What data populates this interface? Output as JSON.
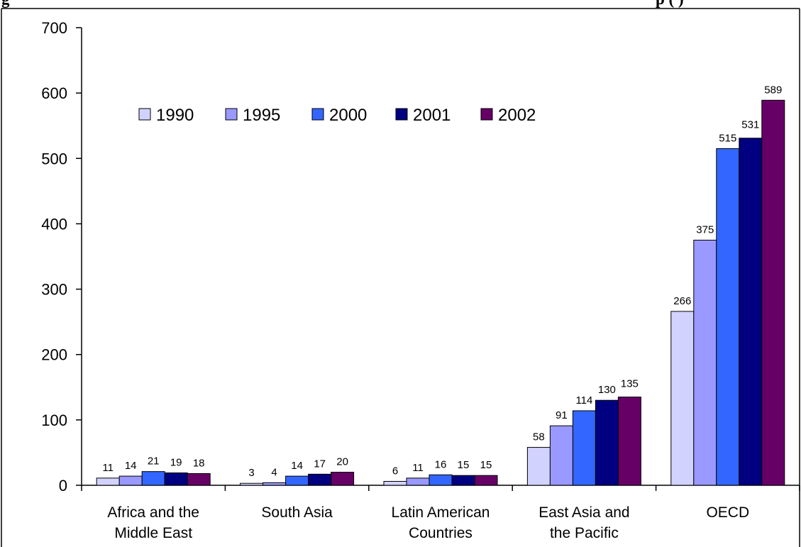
{
  "page": {
    "title_fragment_left": "g",
    "title_fragment_right": "p    (             )"
  },
  "chart_data": {
    "type": "bar",
    "title": "",
    "xlabel": "",
    "ylabel": "",
    "ylim": [
      0,
      700
    ],
    "yticks": [
      0,
      100,
      200,
      300,
      400,
      500,
      600,
      700
    ],
    "grid": false,
    "legend_position": "top-left",
    "categories": [
      [
        "Africa and the",
        "Middle East"
      ],
      [
        "South Asia"
      ],
      [
        "Latin American",
        "Countries"
      ],
      [
        "East Asia and",
        "the Pacific"
      ],
      [
        "OECD"
      ]
    ],
    "series": [
      {
        "name": "1990",
        "color": "#D2D2FF",
        "values": [
          11,
          3,
          6,
          58,
          266
        ]
      },
      {
        "name": "1995",
        "color": "#9999FF",
        "values": [
          14,
          4,
          11,
          91,
          375
        ]
      },
      {
        "name": "2000",
        "color": "#3366FF",
        "values": [
          21,
          14,
          16,
          114,
          515
        ]
      },
      {
        "name": "2001",
        "color": "#000080",
        "values": [
          19,
          17,
          15,
          130,
          531
        ]
      },
      {
        "name": "2002",
        "color": "#660066",
        "values": [
          18,
          20,
          15,
          135,
          589
        ]
      }
    ]
  }
}
